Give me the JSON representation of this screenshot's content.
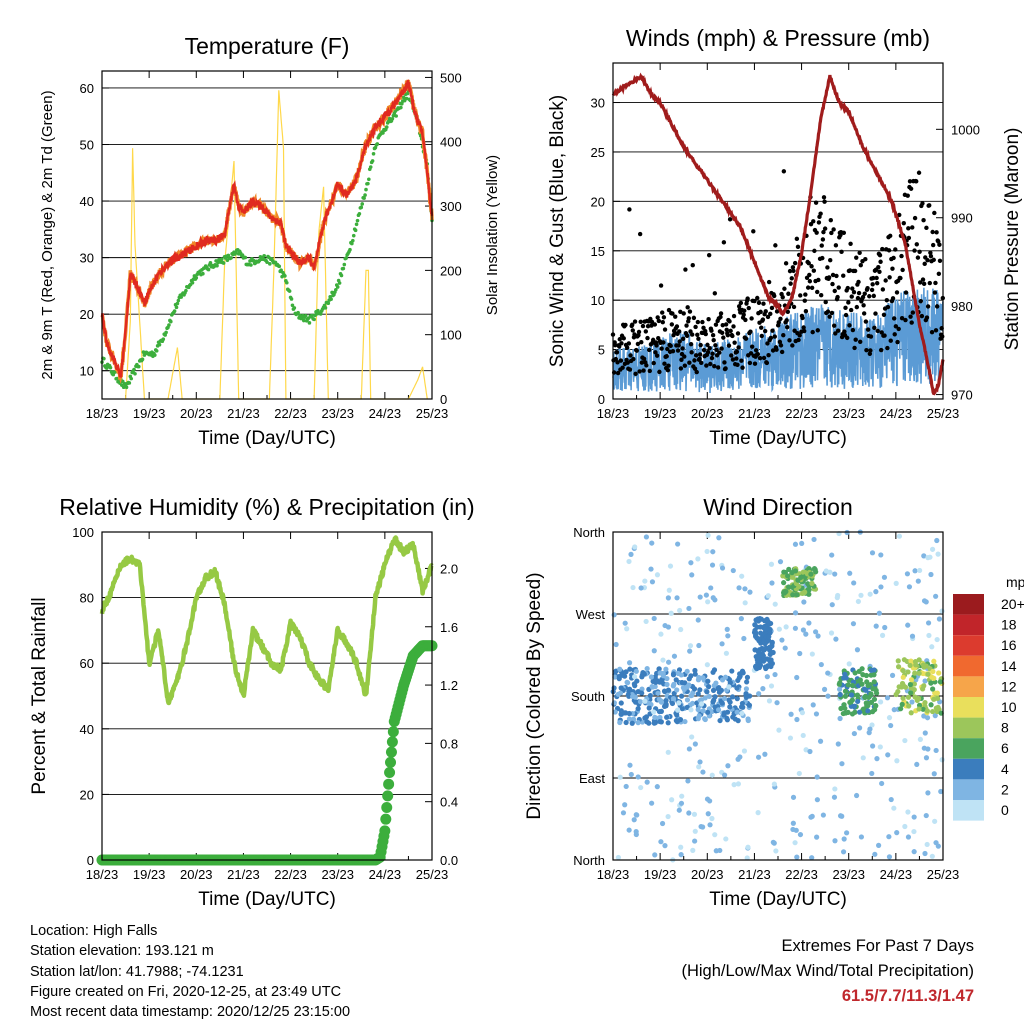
{
  "colors": {
    "t2m": "#e02a20",
    "t9m": "#f0892a",
    "td2m": "#3cae3c",
    "insolation": "#ffd84a",
    "gust": "#000000",
    "wind": "#5b9bd5",
    "pressure": "#a01c1c",
    "rh": "#96c944",
    "rain": "#3cae3c",
    "extremes": "#c0282d"
  },
  "x_ticks": [
    "18/23",
    "19/23",
    "20/23",
    "21/23",
    "22/23",
    "23/23",
    "24/23",
    "25/23"
  ],
  "panels": {
    "temperature": {
      "title": "Temperature (F)",
      "xlabel": "Time (Day/UTC)",
      "ylabel_left": "2m & 9m T (Red, Orange) & 2m Td (Green)",
      "ylabel_right": "Solar Insolation (Yellow)",
      "yticks_left": [
        "10",
        "20",
        "30",
        "40",
        "50",
        "60"
      ],
      "yticks_right": [
        "0",
        "100",
        "200",
        "300",
        "400",
        "500"
      ]
    },
    "winds": {
      "title": "Winds (mph) & Pressure (mb)",
      "xlabel": "Time (Day/UTC)",
      "ylabel_left": "Sonic Wind & Gust (Blue, Black)",
      "ylabel_right": "Station Pressure (Maroon)",
      "yticks_left": [
        "0",
        "5",
        "10",
        "15",
        "20",
        "25",
        "30"
      ],
      "yticks_right": [
        "970",
        "980",
        "990",
        "1000"
      ]
    },
    "humidity": {
      "title": "Relative Humidity (%) & Precipitation (in)",
      "xlabel": "Time (Day/UTC)",
      "ylabel_left": "Percent & Total Rainfall",
      "yticks_left": [
        "0",
        "20",
        "40",
        "60",
        "80",
        "100"
      ],
      "yticks_right": [
        "0.0",
        "0.4",
        "0.8",
        "1.2",
        "1.6",
        "2.0"
      ]
    },
    "direction": {
      "title": "Wind Direction",
      "xlabel": "Time (Day/UTC)",
      "ylabel_left": "Direction (Colored By Speed)",
      "yticks_left": [
        "North",
        "East",
        "South",
        "West",
        "North"
      ],
      "legend_title": "mph",
      "legend_labels": [
        "20+",
        "18",
        "16",
        "14",
        "12",
        "10",
        "8",
        "6",
        "4",
        "2",
        "0"
      ],
      "legend_colors": [
        "#9b1b1e",
        "#c1252a",
        "#dc3b2e",
        "#f0692f",
        "#f6a54a",
        "#e9df5c",
        "#9cc65b",
        "#4aa45e",
        "#3b7dbd",
        "#7fb5e3",
        "#bfe3f5"
      ]
    }
  },
  "info": {
    "location": "Location: High Falls",
    "elevation": "Station elevation: 193.121 m",
    "latlon": "Station lat/lon: 41.7988; -74.1231",
    "created": "Figure created on Fri, 2020-12-25, at 23:49 UTC",
    "recent": "Most recent data timestamp: 2020/12/25 23:15:00"
  },
  "extremes": {
    "line1": "Extremes For Past 7 Days",
    "line2": "(High/Low/Max Wind/Total Precipitation)",
    "values": "61.5/7.7/11.3/1.47"
  },
  "chart_data": [
    {
      "type": "line",
      "title": "Temperature (F)",
      "xlabel": "Time (Day/UTC)",
      "ylabel": "2m & 9m T (Red, Orange) & 2m Td (Green)",
      "y2label": "Solar Insolation (Yellow)",
      "x_range": [
        0,
        7
      ],
      "ylim": [
        5,
        63
      ],
      "y2lim": [
        0,
        510
      ],
      "series": [
        {
          "key": "t2m",
          "x": [
            0,
            0.1,
            0.25,
            0.4,
            0.5,
            0.6,
            0.75,
            0.9,
            1.0,
            1.2,
            1.4,
            1.6,
            1.8,
            2.0,
            2.2,
            2.4,
            2.6,
            2.75,
            2.8,
            2.9,
            3.0,
            3.2,
            3.4,
            3.6,
            3.8,
            3.9,
            4.0,
            4.2,
            4.4,
            4.5,
            4.7,
            5.0,
            5.2,
            5.4,
            5.6,
            5.8,
            6.0,
            6.2,
            6.35,
            6.5,
            6.6,
            6.7,
            6.8,
            6.9,
            7.0
          ],
          "y": [
            20,
            15,
            12,
            9,
            17,
            27,
            25,
            22,
            24,
            27,
            29,
            30,
            31,
            32,
            33,
            33,
            34,
            41,
            43,
            39,
            38,
            40,
            39,
            37,
            36,
            32,
            31,
            29,
            30,
            28,
            36,
            43,
            41,
            44,
            50,
            53,
            55,
            57,
            59,
            61,
            57,
            54,
            52,
            45,
            37
          ]
        },
        {
          "key": "td2m",
          "x": [
            0,
            0.3,
            0.5,
            0.7,
            0.9,
            1.1,
            1.3,
            1.6,
            2.0,
            2.4,
            2.7,
            2.9,
            3.1,
            3.4,
            3.7,
            3.9,
            4.1,
            4.4,
            4.7,
            5.0,
            5.3,
            5.6,
            5.8,
            6.0,
            6.2,
            6.4,
            6.5,
            6.7,
            6.9,
            7.0
          ],
          "y": [
            12,
            9,
            7,
            10,
            13,
            13,
            16,
            22,
            27,
            29,
            30,
            31,
            29,
            30,
            29,
            26,
            20,
            19,
            21,
            25,
            33,
            42,
            50,
            53,
            55,
            58,
            59,
            54,
            46,
            37
          ]
        },
        {
          "key": "insolation",
          "x": [
            0.5,
            0.6,
            0.65,
            0.7,
            0.75,
            0.85,
            0.9,
            1.4,
            1.6,
            1.7,
            2.5,
            2.6,
            2.8,
            2.9,
            3.55,
            3.65,
            3.75,
            3.85,
            3.9,
            4.5,
            4.6,
            4.7,
            4.8,
            5.5,
            5.6,
            5.65,
            5.7,
            6.5,
            6.7,
            6.8,
            6.9
          ],
          "y": [
            0,
            120,
            390,
            240,
            180,
            60,
            0,
            0,
            80,
            0,
            0,
            210,
            370,
            0,
            0,
            210,
            480,
            390,
            0,
            0,
            260,
            330,
            0,
            0,
            200,
            200,
            0,
            0,
            30,
            50,
            0
          ]
        }
      ]
    },
    {
      "type": "line",
      "title": "Winds (mph) & Pressure (mb)",
      "xlabel": "Time (Day/UTC)",
      "ylabel": "Sonic Wind & Gust (Blue, Black)",
      "y2label": "Station Pressure (Maroon)",
      "x_range": [
        0,
        7
      ],
      "ylim": [
        0,
        34
      ],
      "y2lim": [
        969.5,
        1007.5
      ],
      "series": [
        {
          "key": "pressure",
          "x": [
            0,
            0.3,
            0.6,
            0.8,
            1.0,
            1.5,
            1.9,
            2.3,
            2.7,
            3.0,
            3.3,
            3.5,
            3.6,
            3.8,
            4.0,
            4.2,
            4.4,
            4.6,
            4.8,
            5.0,
            5.3,
            5.6,
            5.9,
            6.2,
            6.5,
            6.7,
            6.8,
            6.9,
            7.0
          ],
          "y": [
            1004,
            1005,
            1006,
            1004,
            1003,
            998,
            995,
            992,
            989,
            985,
            981,
            980,
            979,
            981,
            986,
            993,
            1001,
            1006,
            1003,
            1002,
            998,
            995,
            992,
            987,
            978,
            973,
            970,
            971,
            974
          ]
        },
        {
          "key": "wind_mean",
          "x": [
            0,
            0.5,
            1.0,
            1.5,
            2.0,
            2.5,
            3.0,
            3.5,
            4.0,
            4.5,
            5.0,
            5.5,
            6.0,
            6.5,
            7.0
          ],
          "y": [
            3,
            3,
            3.5,
            4,
            3,
            3.5,
            4,
            4.5,
            5,
            5.5,
            5,
            4.5,
            6,
            6.5,
            6
          ]
        },
        {
          "key": "gust_mean",
          "x": [
            0,
            0.5,
            1.0,
            1.5,
            2.0,
            2.5,
            3.0,
            3.5,
            4.0,
            4.3,
            4.6,
            5.0,
            5.5,
            6.0,
            6.3,
            6.6,
            7.0
          ],
          "y": [
            5,
            5,
            5.5,
            6,
            5,
            6,
            6.5,
            8,
            11,
            14,
            12,
            10,
            9,
            11,
            15,
            13,
            11
          ]
        }
      ]
    },
    {
      "type": "line",
      "title": "Relative Humidity (%) & Precipitation (in)",
      "xlabel": "Time (Day/UTC)",
      "ylabel": "Percent & Total Rainfall",
      "x_range": [
        0,
        7
      ],
      "ylim": [
        0,
        100
      ],
      "y2lim": [
        0,
        2.25
      ],
      "series": [
        {
          "key": "rh",
          "x": [
            0,
            0.2,
            0.4,
            0.6,
            0.8,
            1.0,
            1.2,
            1.4,
            1.6,
            1.8,
            2.0,
            2.2,
            2.4,
            2.6,
            2.8,
            3.0,
            3.2,
            3.4,
            3.6,
            3.8,
            4.0,
            4.2,
            4.4,
            4.6,
            4.8,
            5.0,
            5.2,
            5.4,
            5.6,
            5.8,
            6.0,
            6.2,
            6.4,
            6.6,
            6.8,
            7.0
          ],
          "y": [
            76,
            82,
            90,
            92,
            90,
            60,
            70,
            48,
            55,
            66,
            80,
            86,
            88,
            78,
            60,
            50,
            70,
            65,
            60,
            58,
            72,
            68,
            60,
            55,
            52,
            70,
            66,
            60,
            50,
            80,
            90,
            98,
            94,
            96,
            82,
            90
          ]
        },
        {
          "key": "precip",
          "x": [
            0,
            5.8,
            5.9,
            6.0,
            6.1,
            6.2,
            6.4,
            6.6,
            6.8,
            7.0
          ],
          "y": [
            0,
            0,
            0.02,
            0.2,
            0.6,
            0.95,
            1.2,
            1.4,
            1.47,
            1.47
          ]
        }
      ]
    },
    {
      "type": "scatter",
      "title": "Wind Direction",
      "xlabel": "Time (Day/UTC)",
      "ylabel": "Direction (Colored By Speed)",
      "x_range": [
        0,
        7
      ],
      "ylim": [
        0,
        360
      ],
      "clusters": [
        {
          "x": [
            0,
            2.9
          ],
          "dir": [
            150,
            210
          ],
          "speed": [
            2,
            5
          ]
        },
        {
          "x": [
            0,
            7
          ],
          "dir": [
            0,
            360
          ],
          "speed": [
            0,
            3
          ]
        },
        {
          "x": [
            3.0,
            3.4
          ],
          "dir": [
            210,
            265
          ],
          "speed": [
            3,
            5
          ]
        },
        {
          "x": [
            3.6,
            4.3
          ],
          "dir": [
            290,
            320
          ],
          "speed": [
            6,
            8
          ]
        },
        {
          "x": [
            4.8,
            5.6
          ],
          "dir": [
            160,
            210
          ],
          "speed": [
            4,
            7
          ]
        },
        {
          "x": [
            6.0,
            7.0
          ],
          "dir": [
            160,
            220
          ],
          "speed": [
            6,
            10
          ]
        }
      ]
    }
  ]
}
